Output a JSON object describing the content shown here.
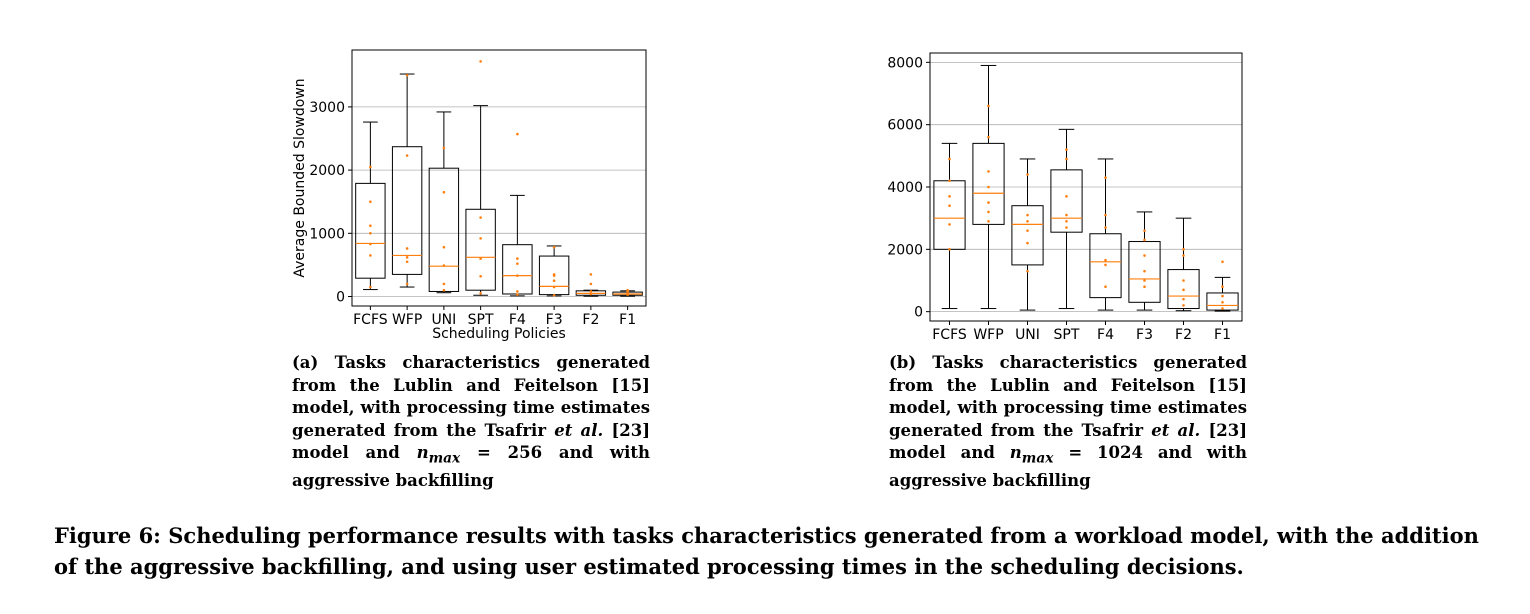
{
  "captions": {
    "a": {
      "label": "(a)",
      "text1": "Tasks characteristics generated from the Lublin and Feitelson [15] model, with processing time estimates generated from the Tsafrir",
      "etal": "et al.",
      "text2": "[23] model and",
      "nmax": "n",
      "nmax_sub": "max",
      "text3": "= 256 and with aggressive backfilling"
    },
    "b": {
      "label": "(b)",
      "text1": "Tasks characteristics generated from the Lublin and Feitelson [15] model, with processing time estimates generated from the Tsafrir",
      "etal": "et al.",
      "text2": "[23] model and",
      "nmax": "n",
      "nmax_sub": "max",
      "text3": "= 1024 and with aggressive backfilling"
    },
    "figure": "Figure 6: Scheduling performance results with tasks characteristics generated from a workload model, with the addition of the aggressive backfilling, and using user estimated processing times in the scheduling decisions."
  },
  "chart_data": [
    {
      "type": "box",
      "xlabel": "Scheduling Policies",
      "ylabel": "Average Bounded Slowdown",
      "ylim": [
        -150,
        3900
      ],
      "yticks": [
        0,
        1000,
        2000,
        3000
      ],
      "grid": "horizontal",
      "colors": {
        "box": "#000000",
        "median": "#ff7f0e",
        "points": "#ff7f0e"
      },
      "categories": [
        "FCFS",
        "WFP",
        "UNI",
        "SPT",
        "F4",
        "F3",
        "F2",
        "F1"
      ],
      "boxes": [
        {
          "whislo": 110,
          "q1": 290,
          "med": 840,
          "q3": 1790,
          "whishi": 2760,
          "points": [
            150,
            650,
            830,
            1000,
            1120,
            1500,
            2050
          ]
        },
        {
          "whislo": 150,
          "q1": 350,
          "med": 650,
          "q3": 2370,
          "whishi": 3520,
          "points": [
            200,
            550,
            620,
            760,
            2230,
            3500
          ]
        },
        {
          "whislo": 60,
          "q1": 80,
          "med": 480,
          "q3": 2030,
          "whishi": 2920,
          "points": [
            100,
            200,
            490,
            780,
            1650,
            2350
          ]
        },
        {
          "whislo": 20,
          "q1": 100,
          "med": 620,
          "q3": 1380,
          "whishi": 3020,
          "points": [
            50,
            320,
            600,
            920,
            1250,
            3720
          ]
        },
        {
          "whislo": 10,
          "q1": 40,
          "med": 330,
          "q3": 820,
          "whishi": 1600,
          "points": [
            30,
            80,
            330,
            520,
            600,
            2570
          ]
        },
        {
          "whislo": 10,
          "q1": 30,
          "med": 160,
          "q3": 640,
          "whishi": 800,
          "points": [
            20,
            150,
            250,
            330,
            350,
            780
          ]
        },
        {
          "whislo": 5,
          "q1": 20,
          "med": 50,
          "q3": 90,
          "whishi": 100,
          "points": [
            40,
            80,
            200,
            350
          ]
        },
        {
          "whislo": 5,
          "q1": 20,
          "med": 40,
          "q3": 70,
          "whishi": 90,
          "points": [
            30,
            50,
            80,
            100
          ]
        }
      ]
    },
    {
      "type": "box",
      "xlabel": "",
      "ylabel": "",
      "ylim": [
        -300,
        8300
      ],
      "yticks": [
        0,
        2000,
        4000,
        6000,
        8000
      ],
      "grid": "horizontal",
      "colors": {
        "box": "#000000",
        "median": "#ff7f0e",
        "points": "#ff7f0e"
      },
      "categories": [
        "FCFS",
        "WFP",
        "UNI",
        "SPT",
        "F4",
        "F3",
        "F2",
        "F1"
      ],
      "boxes": [
        {
          "whislo": 100,
          "q1": 2000,
          "med": 3000,
          "q3": 4200,
          "whishi": 5400,
          "points": [
            2000,
            2800,
            3400,
            3700,
            4200,
            4900
          ]
        },
        {
          "whislo": 100,
          "q1": 2800,
          "med": 3800,
          "q3": 5400,
          "whishi": 7900,
          "points": [
            2900,
            3200,
            3500,
            4000,
            4500,
            5600,
            6600
          ]
        },
        {
          "whislo": 50,
          "q1": 1500,
          "med": 2800,
          "q3": 3400,
          "whishi": 4900,
          "points": [
            1300,
            2200,
            2600,
            2900,
            3100,
            4400
          ]
        },
        {
          "whislo": 100,
          "q1": 2550,
          "med": 3000,
          "q3": 4550,
          "whishi": 5850,
          "points": [
            2700,
            2900,
            3100,
            3700,
            4900,
            5200
          ]
        },
        {
          "whislo": 50,
          "q1": 450,
          "med": 1600,
          "q3": 2500,
          "whishi": 4900,
          "points": [
            800,
            1500,
            1650,
            2700,
            3100,
            4300
          ]
        },
        {
          "whislo": 50,
          "q1": 300,
          "med": 1050,
          "q3": 2250,
          "whishi": 3200,
          "points": [
            800,
            1000,
            1300,
            1800,
            2300,
            2600
          ]
        },
        {
          "whislo": 30,
          "q1": 100,
          "med": 500,
          "q3": 1350,
          "whishi": 3000,
          "points": [
            200,
            400,
            700,
            1000,
            1800,
            2000
          ]
        },
        {
          "whislo": 20,
          "q1": 50,
          "med": 200,
          "q3": 600,
          "whishi": 1100,
          "points": [
            100,
            300,
            500,
            800,
            1600
          ]
        }
      ]
    }
  ]
}
